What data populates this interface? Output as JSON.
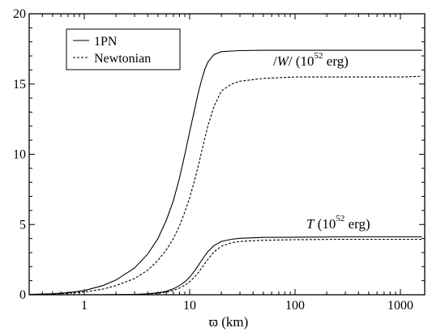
{
  "chart_data": {
    "type": "line",
    "xscale": "log",
    "xlim": [
      0.3,
      1700
    ],
    "ylim": [
      0,
      20
    ],
    "xlabel": "ϖ (km)",
    "ylabel": "",
    "xticks": [
      1,
      10,
      100,
      1000
    ],
    "xtick_labels": [
      "1",
      "10",
      "100",
      "1000"
    ],
    "yticks": [
      0,
      5,
      10,
      15,
      20
    ],
    "ytick_labels": [
      "0",
      "5",
      "10",
      "15",
      "20"
    ],
    "grid": false,
    "legend": {
      "position": "top-left",
      "entries": [
        {
          "label": "1PN",
          "style": "solid"
        },
        {
          "label": "Newtonian",
          "style": "dashed"
        }
      ]
    },
    "annotations": [
      {
        "name": "w",
        "pre": "/",
        "var": "W",
        "post": "/ (10",
        "exp": "52",
        "tail": " erg)"
      },
      {
        "name": "t",
        "pre": "",
        "var": "T",
        "post": " (10",
        "exp": "52",
        "tail": " erg)"
      }
    ],
    "series": [
      {
        "name": "1PN",
        "quantity": "|W|",
        "style": "solid",
        "x": [
          0.3,
          0.5,
          0.7,
          1,
          1.5,
          2,
          3,
          4,
          5,
          6,
          7,
          8,
          9,
          10,
          11,
          12,
          13,
          14,
          15,
          17,
          20,
          25,
          30,
          50,
          100,
          300,
          1000,
          1600
        ],
        "y": [
          0.03,
          0.07,
          0.15,
          0.3,
          0.65,
          1.05,
          1.9,
          2.9,
          4.0,
          5.3,
          6.7,
          8.3,
          10.0,
          11.6,
          13.0,
          14.3,
          15.3,
          16.1,
          16.6,
          17.1,
          17.3,
          17.35,
          17.38,
          17.4,
          17.4,
          17.4,
          17.4,
          17.4
        ]
      },
      {
        "name": "Newtonian",
        "quantity": "|W|",
        "style": "dashed",
        "x": [
          0.3,
          0.5,
          0.7,
          1,
          1.5,
          2,
          3,
          4,
          5,
          6,
          7,
          8,
          9,
          10,
          11,
          12,
          13,
          14,
          15,
          17,
          20,
          25,
          30,
          50,
          100,
          300,
          1000,
          1600
        ],
        "y": [
          0.02,
          0.05,
          0.1,
          0.2,
          0.4,
          0.65,
          1.15,
          1.75,
          2.45,
          3.2,
          4.0,
          4.9,
          5.9,
          6.9,
          8.0,
          9.1,
          10.2,
          11.2,
          12.1,
          13.4,
          14.5,
          15.0,
          15.2,
          15.4,
          15.5,
          15.5,
          15.5,
          15.55
        ]
      },
      {
        "name": "1PN",
        "quantity": "T",
        "style": "solid",
        "x": [
          0.3,
          1,
          2,
          3,
          4,
          5,
          6,
          7,
          8,
          9,
          10,
          11,
          12,
          13,
          14,
          15,
          17,
          20,
          25,
          30,
          50,
          100,
          300,
          1000,
          1600
        ],
        "y": [
          0.0,
          0.0,
          0.01,
          0.03,
          0.07,
          0.14,
          0.25,
          0.42,
          0.65,
          0.92,
          1.25,
          1.65,
          2.05,
          2.45,
          2.8,
          3.1,
          3.5,
          3.8,
          3.95,
          4.02,
          4.08,
          4.1,
          4.12,
          4.12,
          4.12
        ]
      },
      {
        "name": "Newtonian",
        "quantity": "T",
        "style": "dashed",
        "x": [
          0.3,
          1,
          2,
          3,
          4,
          5,
          6,
          7,
          8,
          9,
          10,
          11,
          12,
          13,
          14,
          15,
          17,
          20,
          25,
          30,
          50,
          100,
          300,
          1000,
          1600
        ],
        "y": [
          0.0,
          0.0,
          0.01,
          0.02,
          0.05,
          0.1,
          0.18,
          0.3,
          0.47,
          0.68,
          0.92,
          1.22,
          1.55,
          1.9,
          2.25,
          2.55,
          3.05,
          3.45,
          3.7,
          3.8,
          3.88,
          3.92,
          3.95,
          3.95,
          3.95
        ]
      }
    ]
  }
}
